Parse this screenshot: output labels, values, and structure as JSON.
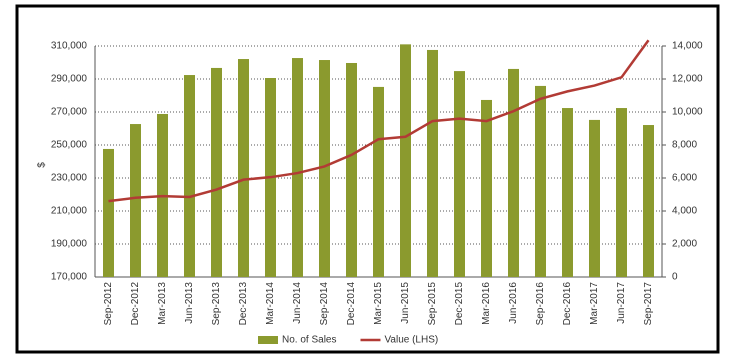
{
  "chart_data": {
    "type": "combo",
    "y_label": "$",
    "categories": [
      "Sep-2012",
      "Dec-2012",
      "Mar-2013",
      "Jun-2013",
      "Sep-2013",
      "Dec-2013",
      "Mar-2014",
      "Jun-2014",
      "Sep-2014",
      "Dec-2014",
      "Mar-2015",
      "Jun-2015",
      "Sep-2015",
      "Dec-2015",
      "Mar-2016",
      "Jun-2016",
      "Sep-2016",
      "Dec-2016",
      "Mar-2017",
      "Jun-2017",
      "Sep-2017"
    ],
    "series": [
      {
        "name": "No. of Sales",
        "type": "bar",
        "axis": "y2",
        "color": "#8b9a2e",
        "values": [
          7760,
          9270,
          9880,
          12240,
          12670,
          13210,
          12060,
          13270,
          13150,
          12970,
          11520,
          14100,
          13760,
          12480,
          10730,
          12610,
          11580,
          10240,
          9520,
          10240,
          9210
        ]
      },
      {
        "name": "Value (LHS)",
        "type": "line",
        "axis": "y",
        "color": "#b23b35",
        "values": [
          216000,
          218000,
          219000,
          218500,
          223000,
          229000,
          230500,
          233000,
          237000,
          244000,
          253500,
          255000,
          264500,
          266000,
          264500,
          270500,
          278000,
          282500,
          286000,
          291000,
          313500
        ]
      }
    ],
    "ylim": [
      170000,
      310000
    ],
    "yticks": [
      {
        "value": 170000,
        "label": "170,000"
      },
      {
        "value": 190000,
        "label": "190,000"
      },
      {
        "value": 210000,
        "label": "210,000"
      },
      {
        "value": 230000,
        "label": "230,000"
      },
      {
        "value": 250000,
        "label": "250,000"
      },
      {
        "value": 270000,
        "label": "270,000"
      },
      {
        "value": 290000,
        "label": "290,000"
      },
      {
        "value": 310000,
        "label": "310,000"
      }
    ],
    "y2lim": [
      0,
      14000
    ],
    "y2ticks": [
      0,
      {
        "value": 2000,
        "label": "2,000"
      },
      {
        "value": 4000,
        "label": "4,000"
      },
      {
        "value": 6000,
        "label": "6,000"
      },
      {
        "value": 8000,
        "label": "8,000"
      },
      {
        "value": 10000,
        "label": "10,000"
      },
      {
        "value": 12000,
        "label": "12,000"
      },
      {
        "value": 14000,
        "label": "14,000"
      }
    ],
    "grid": true,
    "legend": "bottom"
  }
}
